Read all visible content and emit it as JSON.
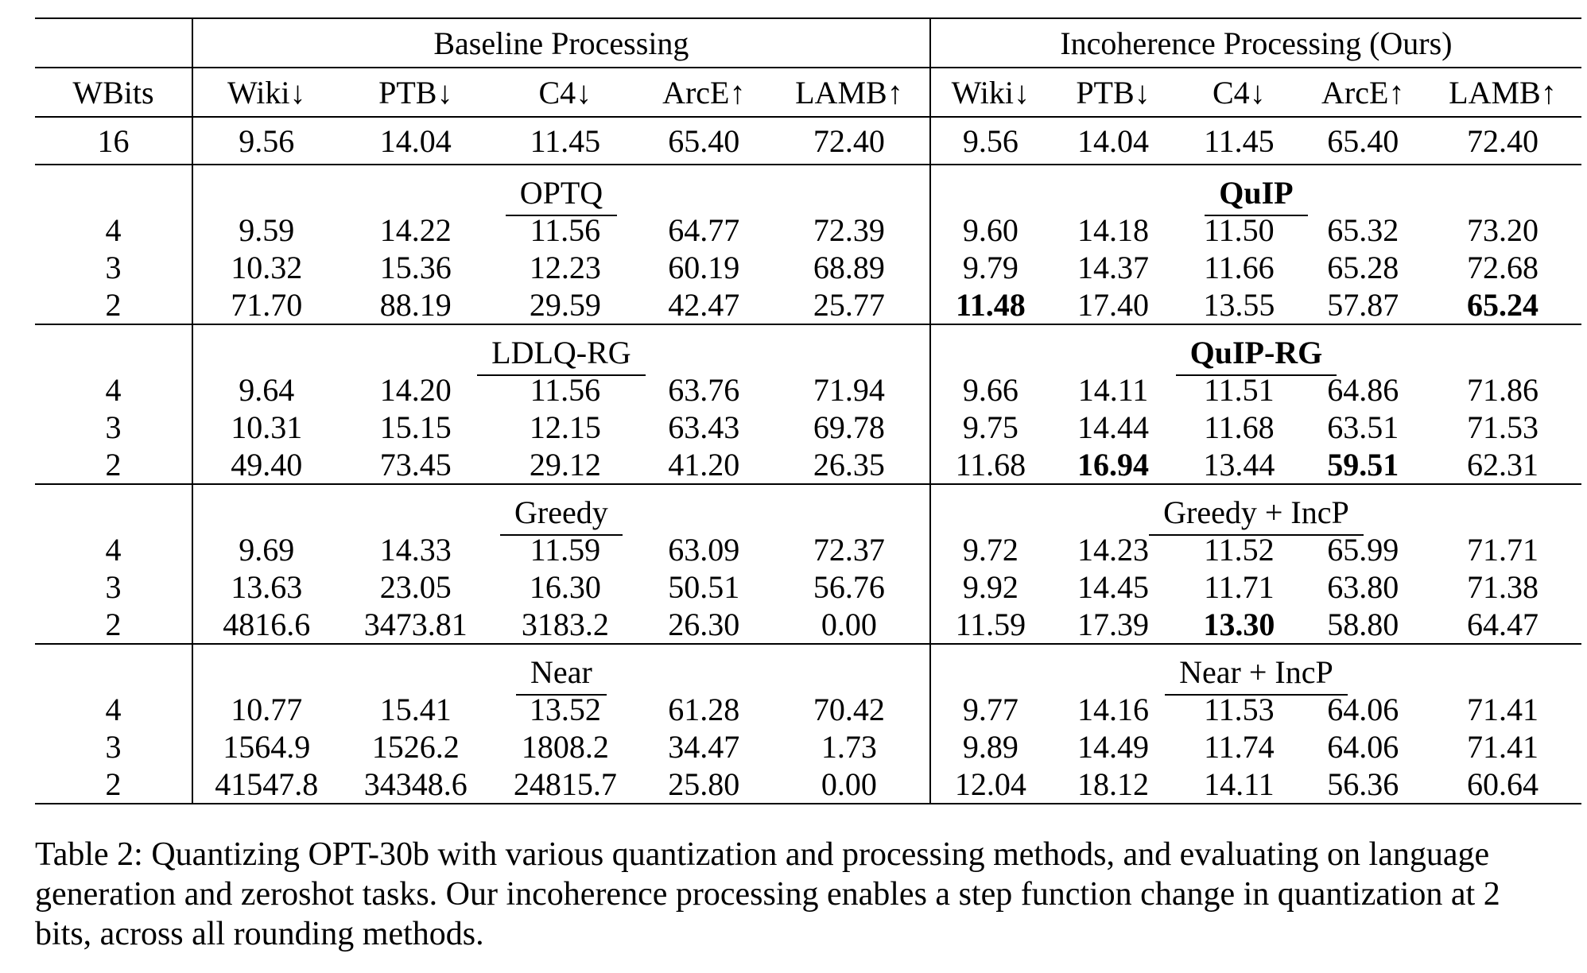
{
  "table": {
    "group_headers": [
      "Baseline Processing",
      "Incoherence Processing (Ours)"
    ],
    "columns": [
      "WBits",
      "Wiki↓",
      "PTB↓",
      "C4↓",
      "ArcE↑",
      "LAMB↑",
      "Wiki↓",
      "PTB↓",
      "C4↓",
      "ArcE↑",
      "LAMB↑"
    ],
    "fp16_row": [
      "16",
      "9.56",
      "14.04",
      "11.45",
      "65.40",
      "72.40",
      "9.56",
      "14.04",
      "11.45",
      "65.40",
      "72.40"
    ],
    "blocks": [
      {
        "baseline_method": "OPTQ",
        "baseline_bold": false,
        "ours_method": "QuIP",
        "ours_bold": true,
        "rows": [
          {
            "wbits": "4",
            "values": [
              "9.59",
              "14.22",
              "11.56",
              "64.77",
              "72.39",
              "9.60",
              "14.18",
              "11.50",
              "65.32",
              "73.20"
            ],
            "bold": []
          },
          {
            "wbits": "3",
            "values": [
              "10.32",
              "15.36",
              "12.23",
              "60.19",
              "68.89",
              "9.79",
              "14.37",
              "11.66",
              "65.28",
              "72.68"
            ],
            "bold": []
          },
          {
            "wbits": "2",
            "values": [
              "71.70",
              "88.19",
              "29.59",
              "42.47",
              "25.77",
              "11.48",
              "17.40",
              "13.55",
              "57.87",
              "65.24"
            ],
            "bold": [
              5,
              9
            ]
          }
        ]
      },
      {
        "baseline_method": "LDLQ-RG",
        "baseline_bold": false,
        "ours_method": "QuIP-RG",
        "ours_bold": true,
        "rows": [
          {
            "wbits": "4",
            "values": [
              "9.64",
              "14.20",
              "11.56",
              "63.76",
              "71.94",
              "9.66",
              "14.11",
              "11.51",
              "64.86",
              "71.86"
            ],
            "bold": []
          },
          {
            "wbits": "3",
            "values": [
              "10.31",
              "15.15",
              "12.15",
              "63.43",
              "69.78",
              "9.75",
              "14.44",
              "11.68",
              "63.51",
              "71.53"
            ],
            "bold": []
          },
          {
            "wbits": "2",
            "values": [
              "49.40",
              "73.45",
              "29.12",
              "41.20",
              "26.35",
              "11.68",
              "16.94",
              "13.44",
              "59.51",
              "62.31"
            ],
            "bold": [
              6,
              8
            ]
          }
        ]
      },
      {
        "baseline_method": "Greedy",
        "baseline_bold": false,
        "ours_method": "Greedy + IncP",
        "ours_bold": false,
        "rows": [
          {
            "wbits": "4",
            "values": [
              "9.69",
              "14.33",
              "11.59",
              "63.09",
              "72.37",
              "9.72",
              "14.23",
              "11.52",
              "65.99",
              "71.71"
            ],
            "bold": []
          },
          {
            "wbits": "3",
            "values": [
              "13.63",
              "23.05",
              "16.30",
              "50.51",
              "56.76",
              "9.92",
              "14.45",
              "11.71",
              "63.80",
              "71.38"
            ],
            "bold": []
          },
          {
            "wbits": "2",
            "values": [
              "4816.6",
              "3473.81",
              "3183.2",
              "26.30",
              "0.00",
              "11.59",
              "17.39",
              "13.30",
              "58.80",
              "64.47"
            ],
            "bold": [
              7
            ]
          }
        ]
      },
      {
        "baseline_method": "Near",
        "baseline_bold": false,
        "ours_method": "Near + IncP",
        "ours_bold": false,
        "rows": [
          {
            "wbits": "4",
            "values": [
              "10.77",
              "15.41",
              "13.52",
              "61.28",
              "70.42",
              "9.77",
              "14.16",
              "11.53",
              "64.06",
              "71.41"
            ],
            "bold": []
          },
          {
            "wbits": "3",
            "values": [
              "1564.9",
              "1526.2",
              "1808.2",
              "34.47",
              "1.73",
              "9.89",
              "14.49",
              "11.74",
              "64.06",
              "71.41"
            ],
            "bold": []
          },
          {
            "wbits": "2",
            "values": [
              "41547.8",
              "34348.6",
              "24815.7",
              "25.80",
              "0.00",
              "12.04",
              "18.12",
              "14.11",
              "56.36",
              "60.64"
            ],
            "bold": []
          }
        ]
      }
    ]
  },
  "caption": "Table 2:  Quantizing OPT-30b with various quantization and processing methods, and evaluating on language generation and zeroshot tasks. Our incoherence processing enables a step function change in quantization at 2 bits, across all rounding methods."
}
